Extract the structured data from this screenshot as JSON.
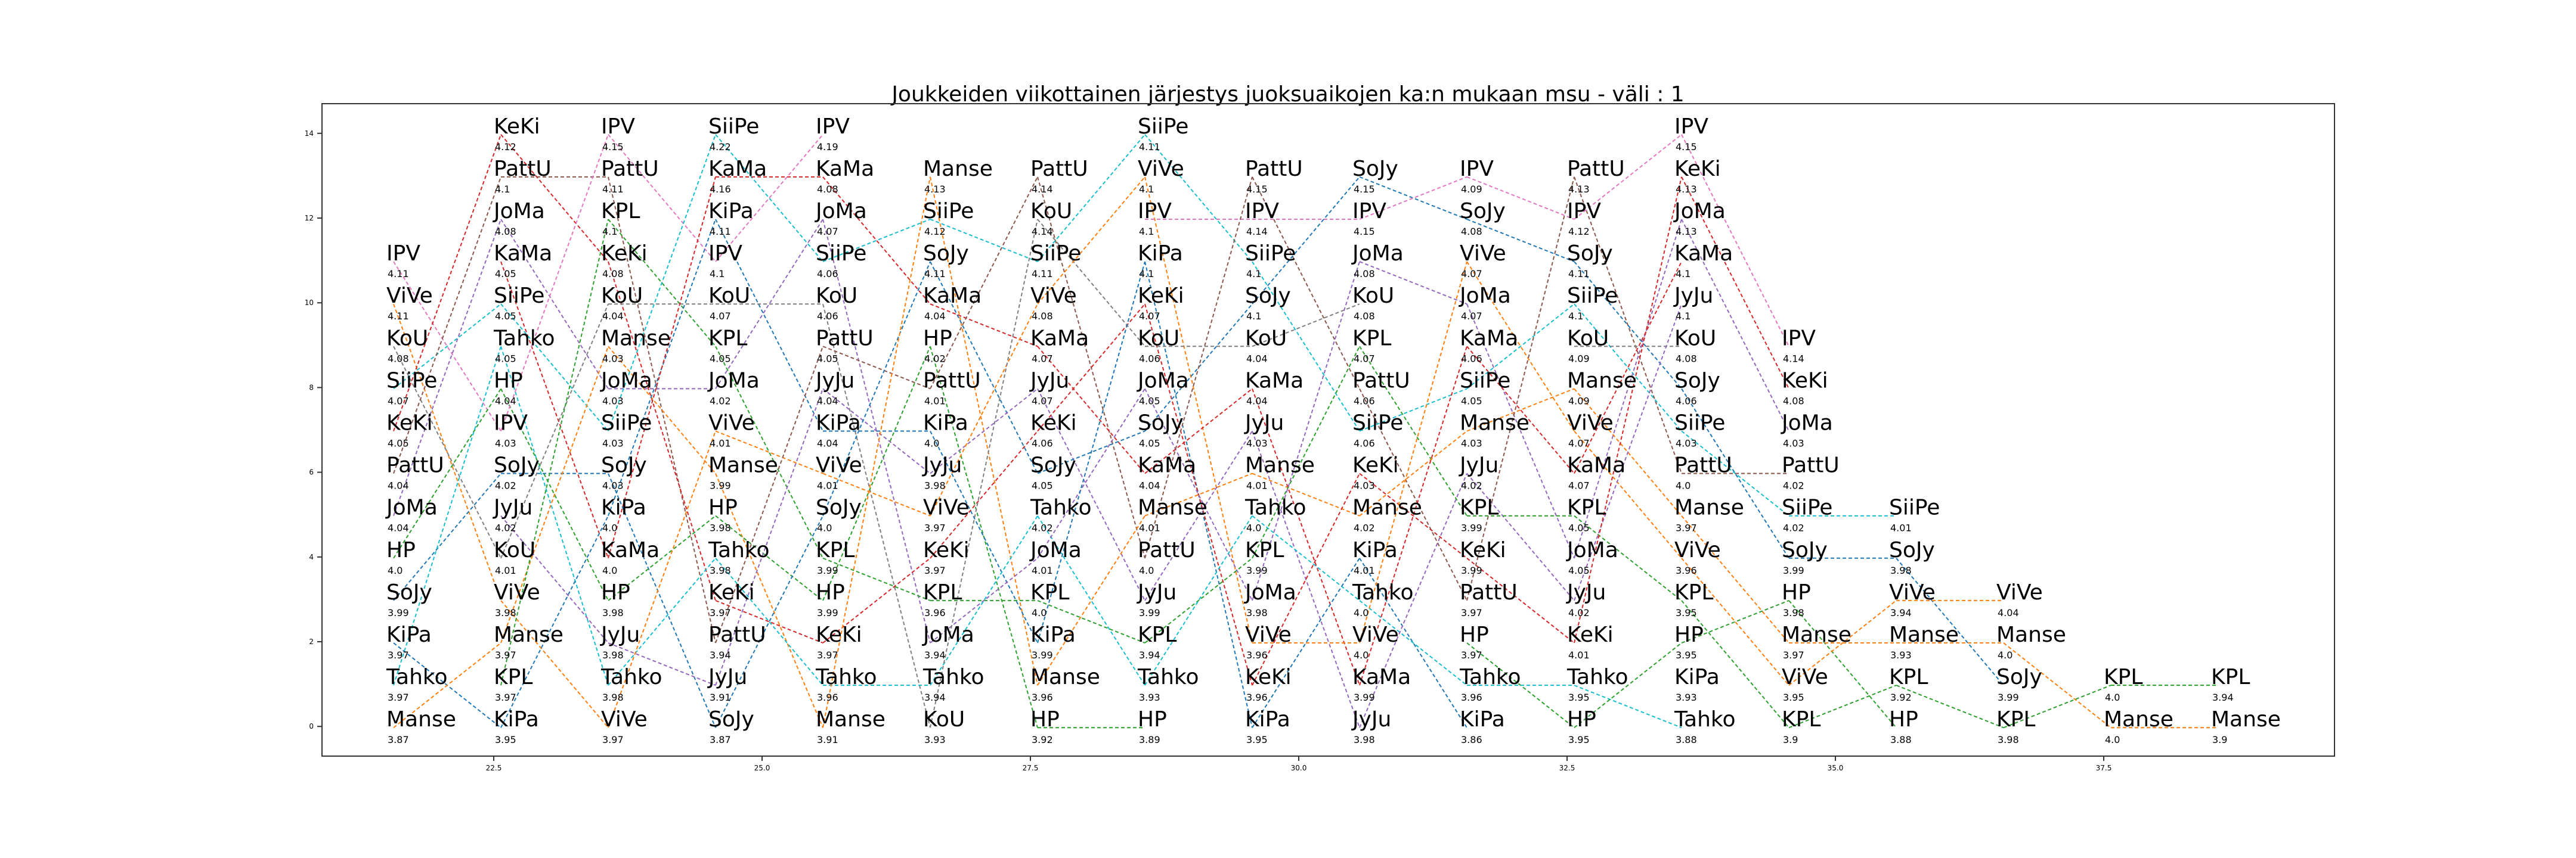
{
  "chart_data": {
    "type": "line",
    "title": "Joukkeiden viikottainen järjestys juoksuaikojen ka:n mukaan msu - väli : 1",
    "xlabel": "",
    "ylabel": "",
    "xlim": [
      20.9,
      39.65
    ],
    "ylim": [
      -0.7,
      14.7
    ],
    "grid": false,
    "x_ticks": [
      22.5,
      25.0,
      27.5,
      30.0,
      32.5,
      35.0,
      37.5
    ],
    "x_tick_labels": [
      "22.5",
      "25.0",
      "27.5",
      "30.0",
      "32.5",
      "35.0",
      "37.5"
    ],
    "y_ticks": [
      0,
      2,
      4,
      6,
      8,
      10,
      12,
      14
    ],
    "y_tick_labels": [
      "0",
      "2",
      "4",
      "6",
      "8",
      "10",
      "12",
      "14"
    ],
    "weeks": [
      {
        "x": 21.5,
        "entries": [
          [
            "IPV",
            11,
            "4.11"
          ],
          [
            "ViVe",
            10,
            "4.11"
          ],
          [
            "KoU",
            9,
            "4.08"
          ],
          [
            "SiiPe",
            8,
            "4.07"
          ],
          [
            "KeKi",
            7,
            "4.05"
          ],
          [
            "PattU",
            6,
            "4.04"
          ],
          [
            "JoMa",
            5,
            "4.04"
          ],
          [
            "HP",
            4,
            "4.0"
          ],
          [
            "SoJy",
            3,
            "3.99"
          ],
          [
            "KiPa",
            2,
            "3.97"
          ],
          [
            "Tahko",
            1,
            "3.97"
          ],
          [
            "Manse",
            0,
            "3.87"
          ]
        ]
      },
      {
        "x": 22.5,
        "entries": [
          [
            "KeKi",
            14,
            "4.12"
          ],
          [
            "PattU",
            13,
            "4.1"
          ],
          [
            "JoMa",
            12,
            "4.08"
          ],
          [
            "KaMa",
            11,
            "4.05"
          ],
          [
            "SiiPe",
            10,
            "4.05"
          ],
          [
            "Tahko",
            9,
            "4.05"
          ],
          [
            "HP",
            8,
            "4.04"
          ],
          [
            "IPV",
            7,
            "4.03"
          ],
          [
            "SoJy",
            6,
            "4.02"
          ],
          [
            "JyJu",
            5,
            "4.02"
          ],
          [
            "KoU",
            4,
            "4.01"
          ],
          [
            "ViVe",
            3,
            "3.98"
          ],
          [
            "Manse",
            2,
            "3.97"
          ],
          [
            "KPL",
            1,
            "3.97"
          ],
          [
            "KiPa",
            0,
            "3.95"
          ]
        ]
      },
      {
        "x": 23.5,
        "entries": [
          [
            "IPV",
            14,
            "4.15"
          ],
          [
            "PattU",
            13,
            "4.11"
          ],
          [
            "KPL",
            12,
            "4.1"
          ],
          [
            "KeKi",
            11,
            "4.08"
          ],
          [
            "KoU",
            10,
            "4.04"
          ],
          [
            "Manse",
            9,
            "4.03"
          ],
          [
            "JoMa",
            8,
            "4.03"
          ],
          [
            "SiiPe",
            7,
            "4.03"
          ],
          [
            "SoJy",
            6,
            "4.03"
          ],
          [
            "KiPa",
            5,
            "4.0"
          ],
          [
            "KaMa",
            4,
            "4.0"
          ],
          [
            "HP",
            3,
            "3.98"
          ],
          [
            "JyJu",
            2,
            "3.98"
          ],
          [
            "Tahko",
            1,
            "3.98"
          ],
          [
            "ViVe",
            0,
            "3.97"
          ]
        ]
      },
      {
        "x": 24.5,
        "entries": [
          [
            "SiiPe",
            14,
            "4.22"
          ],
          [
            "KaMa",
            13,
            "4.16"
          ],
          [
            "KiPa",
            12,
            "4.11"
          ],
          [
            "IPV",
            11,
            "4.1"
          ],
          [
            "KoU",
            10,
            "4.07"
          ],
          [
            "KPL",
            9,
            "4.05"
          ],
          [
            "JoMa",
            8,
            "4.02"
          ],
          [
            "ViVe",
            7,
            "4.01"
          ],
          [
            "Manse",
            6,
            "3.99"
          ],
          [
            "HP",
            5,
            "3.98"
          ],
          [
            "Tahko",
            4,
            "3.98"
          ],
          [
            "KeKi",
            3,
            "3.97"
          ],
          [
            "PattU",
            2,
            "3.94"
          ],
          [
            "JyJu",
            1,
            "3.91"
          ],
          [
            "SoJy",
            0,
            "3.87"
          ]
        ]
      },
      {
        "x": 25.5,
        "entries": [
          [
            "IPV",
            14,
            "4.19"
          ],
          [
            "KaMa",
            13,
            "4.08"
          ],
          [
            "JoMa",
            12,
            "4.07"
          ],
          [
            "SiiPe",
            11,
            "4.06"
          ],
          [
            "KoU",
            10,
            "4.06"
          ],
          [
            "PattU",
            9,
            "4.05"
          ],
          [
            "JyJu",
            8,
            "4.04"
          ],
          [
            "KiPa",
            7,
            "4.04"
          ],
          [
            "ViVe",
            6,
            "4.01"
          ],
          [
            "SoJy",
            5,
            "4.0"
          ],
          [
            "KPL",
            4,
            "3.99"
          ],
          [
            "HP",
            3,
            "3.99"
          ],
          [
            "KeKi",
            2,
            "3.97"
          ],
          [
            "Tahko",
            1,
            "3.96"
          ],
          [
            "Manse",
            0,
            "3.91"
          ]
        ]
      },
      {
        "x": 26.5,
        "entries": [
          [
            "Manse",
            13,
            "4.13"
          ],
          [
            "SiiPe",
            12,
            "4.12"
          ],
          [
            "SoJy",
            11,
            "4.11"
          ],
          [
            "KaMa",
            10,
            "4.04"
          ],
          [
            "HP",
            9,
            "4.02"
          ],
          [
            "PattU",
            8,
            "4.01"
          ],
          [
            "KiPa",
            7,
            "4.0"
          ],
          [
            "JyJu",
            6,
            "3.98"
          ],
          [
            "ViVe",
            5,
            "3.97"
          ],
          [
            "KeKi",
            4,
            "3.97"
          ],
          [
            "KPL",
            3,
            "3.96"
          ],
          [
            "JoMa",
            2,
            "3.94"
          ],
          [
            "Tahko",
            1,
            "3.94"
          ],
          [
            "KoU",
            0,
            "3.93"
          ]
        ]
      },
      {
        "x": 27.5,
        "entries": [
          [
            "PattU",
            13,
            "4.14"
          ],
          [
            "KoU",
            12,
            "4.14"
          ],
          [
            "SiiPe",
            11,
            "4.11"
          ],
          [
            "ViVe",
            10,
            "4.08"
          ],
          [
            "KaMa",
            9,
            "4.07"
          ],
          [
            "JyJu",
            8,
            "4.07"
          ],
          [
            "KeKi",
            7,
            "4.06"
          ],
          [
            "SoJy",
            6,
            "4.05"
          ],
          [
            "Tahko",
            5,
            "4.02"
          ],
          [
            "JoMa",
            4,
            "4.01"
          ],
          [
            "KPL",
            3,
            "4.0"
          ],
          [
            "KiPa",
            2,
            "3.99"
          ],
          [
            "Manse",
            1,
            "3.96"
          ],
          [
            "HP",
            0,
            "3.92"
          ]
        ]
      },
      {
        "x": 28.5,
        "entries": [
          [
            "SiiPe",
            14,
            "4.11"
          ],
          [
            "ViVe",
            13,
            "4.1"
          ],
          [
            "IPV",
            12,
            "4.1"
          ],
          [
            "KiPa",
            11,
            "4.1"
          ],
          [
            "KeKi",
            10,
            "4.07"
          ],
          [
            "KoU",
            9,
            "4.06"
          ],
          [
            "JoMa",
            8,
            "4.05"
          ],
          [
            "SoJy",
            7,
            "4.05"
          ],
          [
            "KaMa",
            6,
            "4.04"
          ],
          [
            "Manse",
            5,
            "4.01"
          ],
          [
            "PattU",
            4,
            "4.0"
          ],
          [
            "JyJu",
            3,
            "3.99"
          ],
          [
            "KPL",
            2,
            "3.94"
          ],
          [
            "Tahko",
            1,
            "3.93"
          ],
          [
            "HP",
            0,
            "3.89"
          ]
        ]
      },
      {
        "x": 29.5,
        "entries": [
          [
            "PattU",
            13,
            "4.15"
          ],
          [
            "IPV",
            12,
            "4.14"
          ],
          [
            "SiiPe",
            11,
            "4.1"
          ],
          [
            "SoJy",
            10,
            "4.1"
          ],
          [
            "KoU",
            9,
            "4.04"
          ],
          [
            "KaMa",
            8,
            "4.04"
          ],
          [
            "JyJu",
            7,
            "4.03"
          ],
          [
            "Manse",
            6,
            "4.01"
          ],
          [
            "Tahko",
            5,
            "4.0"
          ],
          [
            "KPL",
            4,
            "3.99"
          ],
          [
            "JoMa",
            3,
            "3.98"
          ],
          [
            "ViVe",
            2,
            "3.96"
          ],
          [
            "KeKi",
            1,
            "3.96"
          ],
          [
            "KiPa",
            0,
            "3.95"
          ]
        ]
      },
      {
        "x": 30.5,
        "entries": [
          [
            "SoJy",
            13,
            "4.15"
          ],
          [
            "IPV",
            12,
            "4.15"
          ],
          [
            "JoMa",
            11,
            "4.08"
          ],
          [
            "KoU",
            10,
            "4.08"
          ],
          [
            "KPL",
            9,
            "4.07"
          ],
          [
            "PattU",
            8,
            "4.06"
          ],
          [
            "SiiPe",
            7,
            "4.06"
          ],
          [
            "KeKi",
            6,
            "4.03"
          ],
          [
            "Manse",
            5,
            "4.02"
          ],
          [
            "KiPa",
            4,
            "4.01"
          ],
          [
            "Tahko",
            3,
            "4.0"
          ],
          [
            "ViVe",
            2,
            "4.0"
          ],
          [
            "KaMa",
            1,
            "3.99"
          ],
          [
            "JyJu",
            0,
            "3.98"
          ]
        ]
      },
      {
        "x": 31.5,
        "entries": [
          [
            "IPV",
            13,
            "4.09"
          ],
          [
            "SoJy",
            12,
            "4.08"
          ],
          [
            "ViVe",
            11,
            "4.07"
          ],
          [
            "JoMa",
            10,
            "4.07"
          ],
          [
            "KaMa",
            9,
            "4.06"
          ],
          [
            "SiiPe",
            8,
            "4.05"
          ],
          [
            "Manse",
            7,
            "4.03"
          ],
          [
            "JyJu",
            6,
            "4.02"
          ],
          [
            "KPL",
            5,
            "3.99"
          ],
          [
            "KeKi",
            4,
            "3.99"
          ],
          [
            "PattU",
            3,
            "3.97"
          ],
          [
            "HP",
            2,
            "3.97"
          ],
          [
            "Tahko",
            1,
            "3.96"
          ],
          [
            "KiPa",
            0,
            "3.86"
          ]
        ]
      },
      {
        "x": 32.5,
        "entries": [
          [
            "PattU",
            13,
            "4.13"
          ],
          [
            "IPV",
            12,
            "4.12"
          ],
          [
            "SoJy",
            11,
            "4.11"
          ],
          [
            "SiiPe",
            10,
            "4.1"
          ],
          [
            "KoU",
            9,
            "4.09"
          ],
          [
            "Manse",
            8,
            "4.09"
          ],
          [
            "ViVe",
            7,
            "4.07"
          ],
          [
            "KaMa",
            6,
            "4.07"
          ],
          [
            "KPL",
            5,
            "4.05"
          ],
          [
            "JoMa",
            4,
            "4.05"
          ],
          [
            "JyJu",
            3,
            "4.02"
          ],
          [
            "KeKi",
            2,
            "4.01"
          ],
          [
            "Tahko",
            1,
            "3.95"
          ],
          [
            "HP",
            0,
            "3.95"
          ]
        ]
      },
      {
        "x": 33.5,
        "entries": [
          [
            "IPV",
            14,
            "4.15"
          ],
          [
            "KeKi",
            13,
            "4.13"
          ],
          [
            "JoMa",
            12,
            "4.13"
          ],
          [
            "KaMa",
            11,
            "4.1"
          ],
          [
            "JyJu",
            10,
            "4.1"
          ],
          [
            "KoU",
            9,
            "4.08"
          ],
          [
            "SoJy",
            8,
            "4.06"
          ],
          [
            "SiiPe",
            7,
            "4.03"
          ],
          [
            "PattU",
            6,
            "4.0"
          ],
          [
            "Manse",
            5,
            "3.97"
          ],
          [
            "ViVe",
            4,
            "3.96"
          ],
          [
            "KPL",
            3,
            "3.95"
          ],
          [
            "HP",
            2,
            "3.95"
          ],
          [
            "KiPa",
            1,
            "3.93"
          ],
          [
            "Tahko",
            0,
            "3.88"
          ]
        ]
      },
      {
        "x": 34.5,
        "entries": [
          [
            "IPV",
            9,
            "4.14"
          ],
          [
            "KeKi",
            8,
            "4.08"
          ],
          [
            "JoMa",
            7,
            "4.03"
          ],
          [
            "PattU",
            6,
            "4.02"
          ],
          [
            "SiiPe",
            5,
            "4.02"
          ],
          [
            "SoJy",
            4,
            "3.99"
          ],
          [
            "HP",
            3,
            "3.98"
          ],
          [
            "Manse",
            2,
            "3.97"
          ],
          [
            "ViVe",
            1,
            "3.95"
          ],
          [
            "KPL",
            0,
            "3.9"
          ]
        ]
      },
      {
        "x": 35.5,
        "entries": [
          [
            "SiiPe",
            5,
            "4.01"
          ],
          [
            "SoJy",
            4,
            "3.98"
          ],
          [
            "ViVe",
            3,
            "3.94"
          ],
          [
            "Manse",
            2,
            "3.93"
          ],
          [
            "KPL",
            1,
            "3.92"
          ],
          [
            "HP",
            0,
            "3.88"
          ]
        ]
      },
      {
        "x": 36.5,
        "entries": [
          [
            "ViVe",
            3,
            "4.04"
          ],
          [
            "Manse",
            2,
            "4.0"
          ],
          [
            "SoJy",
            1,
            "3.99"
          ],
          [
            "KPL",
            0,
            "3.98"
          ]
        ]
      },
      {
        "x": 37.5,
        "entries": [
          [
            "KPL",
            1,
            "4.0"
          ],
          [
            "Manse",
            0,
            "4.0"
          ]
        ]
      },
      {
        "x": 38.5,
        "entries": [
          [
            "KPL",
            1,
            "3.94"
          ],
          [
            "Manse",
            0,
            "3.9"
          ]
        ]
      }
    ],
    "team_colors": {
      "IPV": "#e377c2",
      "ViVe": "#ff7f0e",
      "KoU": "#7f7f7f",
      "SiiPe": "#17becf",
      "KeKi": "#d62728",
      "PattU": "#8c564b",
      "JoMa": "#9467bd",
      "HP": "#2ca02c",
      "SoJy": "#1f77b4",
      "KiPa": "#1f77b4",
      "Tahko": "#17becf",
      "Manse": "#ff7f0e",
      "KaMa": "#d62728",
      "JyJu": "#9467bd",
      "KPL": "#2ca02c"
    }
  }
}
